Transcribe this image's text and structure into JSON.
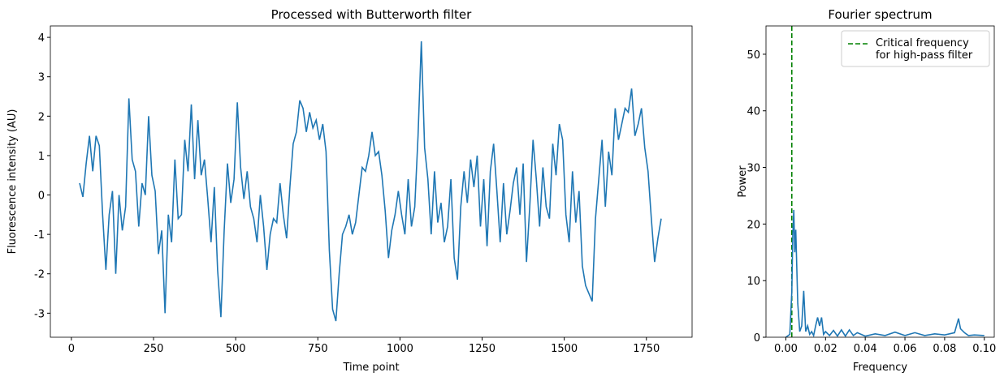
{
  "chart_data": [
    {
      "type": "line",
      "title": "Processed with Butterworth filter",
      "xlabel": "Time point",
      "ylabel": "Fluorescence intensity (AU)",
      "color": "#1f77b4",
      "xlim": [
        -64,
        1889
      ],
      "ylim": [
        -3.61,
        4.29
      ],
      "xticks": [
        0,
        250,
        500,
        750,
        1000,
        1250,
        1500,
        1750
      ],
      "yticks": [
        -3,
        -2,
        -1,
        0,
        1,
        2,
        3,
        4
      ],
      "x": [
        25,
        35,
        45,
        55,
        65,
        75,
        85,
        95,
        105,
        115,
        125,
        135,
        145,
        155,
        165,
        175,
        185,
        195,
        205,
        215,
        225,
        235,
        245,
        255,
        265,
        275,
        285,
        295,
        305,
        315,
        325,
        335,
        345,
        355,
        365,
        375,
        385,
        395,
        405,
        415,
        425,
        435,
        445,
        455,
        465,
        475,
        485,
        495,
        505,
        515,
        525,
        535,
        545,
        555,
        565,
        575,
        585,
        595,
        605,
        615,
        625,
        635,
        645,
        655,
        665,
        675,
        685,
        695,
        705,
        715,
        725,
        735,
        745,
        755,
        765,
        775,
        785,
        795,
        805,
        815,
        825,
        835,
        845,
        855,
        865,
        875,
        885,
        895,
        905,
        915,
        925,
        935,
        945,
        955,
        965,
        975,
        985,
        995,
        1005,
        1015,
        1025,
        1035,
        1045,
        1055,
        1065,
        1075,
        1085,
        1095,
        1105,
        1115,
        1125,
        1135,
        1145,
        1155,
        1165,
        1175,
        1185,
        1195,
        1205,
        1215,
        1225,
        1235,
        1245,
        1255,
        1265,
        1275,
        1285,
        1295,
        1305,
        1315,
        1325,
        1335,
        1345,
        1355,
        1365,
        1375,
        1385,
        1395,
        1405,
        1415,
        1425,
        1435,
        1445,
        1455,
        1465,
        1475,
        1485,
        1495,
        1505,
        1515,
        1525,
        1535,
        1545,
        1555,
        1565,
        1575,
        1585,
        1595,
        1605,
        1615,
        1625,
        1635,
        1645,
        1655,
        1665,
        1675,
        1685,
        1695,
        1705,
        1715,
        1725,
        1735,
        1745,
        1755,
        1765,
        1775,
        1785,
        1795
      ],
      "values": [
        0.3,
        -0.05,
        0.8,
        1.5,
        0.6,
        1.5,
        1.25,
        -0.5,
        -1.9,
        -0.5,
        0.1,
        -2.0,
        0.0,
        -0.9,
        -0.3,
        2.45,
        0.9,
        0.6,
        -0.8,
        0.3,
        0.0,
        2.0,
        0.5,
        0.1,
        -1.5,
        -0.9,
        -3.0,
        -0.5,
        -1.2,
        0.9,
        -0.6,
        -0.5,
        1.4,
        0.6,
        2.3,
        0.4,
        1.9,
        0.5,
        0.9,
        -0.1,
        -1.2,
        0.2,
        -1.9,
        -3.1,
        -0.9,
        0.8,
        -0.2,
        0.4,
        2.35,
        0.7,
        -0.1,
        0.6,
        -0.3,
        -0.6,
        -1.2,
        0.0,
        -0.8,
        -1.9,
        -1.0,
        -0.6,
        -0.7,
        0.3,
        -0.5,
        -1.1,
        0.2,
        1.3,
        1.6,
        2.4,
        2.2,
        1.6,
        2.1,
        1.7,
        1.9,
        1.4,
        1.8,
        1.1,
        -1.4,
        -2.9,
        -3.2,
        -2.0,
        -1.0,
        -0.8,
        -0.5,
        -1.0,
        -0.7,
        0.0,
        0.7,
        0.6,
        1.0,
        1.6,
        1.0,
        1.1,
        0.5,
        -0.4,
        -1.6,
        -0.9,
        -0.5,
        0.1,
        -0.5,
        -1.0,
        0.4,
        -0.8,
        -0.3,
        1.5,
        3.9,
        1.2,
        0.4,
        -1.0,
        0.6,
        -0.7,
        -0.2,
        -1.2,
        -0.8,
        0.4,
        -1.6,
        -2.15,
        -0.3,
        0.6,
        -0.2,
        0.9,
        0.2,
        1.0,
        -0.8,
        0.4,
        -1.3,
        0.6,
        1.3,
        0.1,
        -1.2,
        0.3,
        -1.0,
        -0.4,
        0.3,
        0.7,
        -0.5,
        0.8,
        -1.7,
        -0.3,
        1.4,
        0.4,
        -0.8,
        0.7,
        -0.3,
        -0.6,
        1.3,
        0.5,
        1.8,
        1.4,
        -0.5,
        -1.2,
        0.6,
        -0.7,
        0.1,
        -1.8,
        -2.3,
        -2.5,
        -2.7,
        -0.6,
        0.4,
        1.4,
        -0.3,
        1.1,
        0.5,
        2.2,
        1.4,
        1.8,
        2.2,
        2.1,
        2.7,
        1.5,
        1.8,
        2.2,
        1.2,
        0.6,
        -0.6,
        -1.7,
        -1.1,
        -0.6
      ]
    },
    {
      "type": "line",
      "title": "Fourier spectrum",
      "xlabel": "Frequency",
      "ylabel": "Power",
      "color": "#1f77b4",
      "xlim": [
        -0.01,
        0.105
      ],
      "ylim": [
        0,
        55
      ],
      "xticks": [
        {
          "value": 0,
          "label": "0.00"
        },
        {
          "value": 0.02,
          "label": "0.02"
        },
        {
          "value": 0.04,
          "label": "0.04"
        },
        {
          "value": 0.06,
          "label": "0.06"
        },
        {
          "value": 0.08,
          "label": "0.08"
        },
        {
          "value": 0.1,
          "label": "0.10"
        }
      ],
      "yticks": [
        0,
        10,
        20,
        30,
        40,
        50
      ],
      "x": [
        0,
        0.002,
        0.003,
        0.0035,
        0.004,
        0.0045,
        0.005,
        0.006,
        0.007,
        0.008,
        0.009,
        0.01,
        0.011,
        0.012,
        0.013,
        0.014,
        0.015,
        0.016,
        0.017,
        0.018,
        0.019,
        0.02,
        0.022,
        0.024,
        0.026,
        0.028,
        0.03,
        0.032,
        0.034,
        0.036,
        0.04,
        0.045,
        0.05,
        0.055,
        0.06,
        0.065,
        0.07,
        0.075,
        0.08,
        0.085,
        0.087,
        0.088,
        0.09,
        0.092,
        0.095,
        0.1
      ],
      "values": [
        0,
        0.5,
        8,
        18,
        22.5,
        15,
        19,
        6,
        1,
        2,
        8.2,
        1,
        2,
        0.5,
        1,
        0.3,
        2,
        3.5,
        2,
        3.5,
        0.5,
        1,
        0.3,
        1.2,
        0.2,
        1.3,
        0.2,
        1.3,
        0.3,
        0.8,
        0.2,
        0.6,
        0.3,
        0.9,
        0.3,
        0.8,
        0.3,
        0.6,
        0.4,
        0.8,
        3.3,
        1.5,
        0.8,
        0.3,
        0.4,
        0.3
      ],
      "vline": {
        "x": 0.003,
        "color": "green",
        "label": [
          "Critical frequency",
          "for high-pass filter"
        ]
      },
      "legend": "upper right"
    }
  ]
}
